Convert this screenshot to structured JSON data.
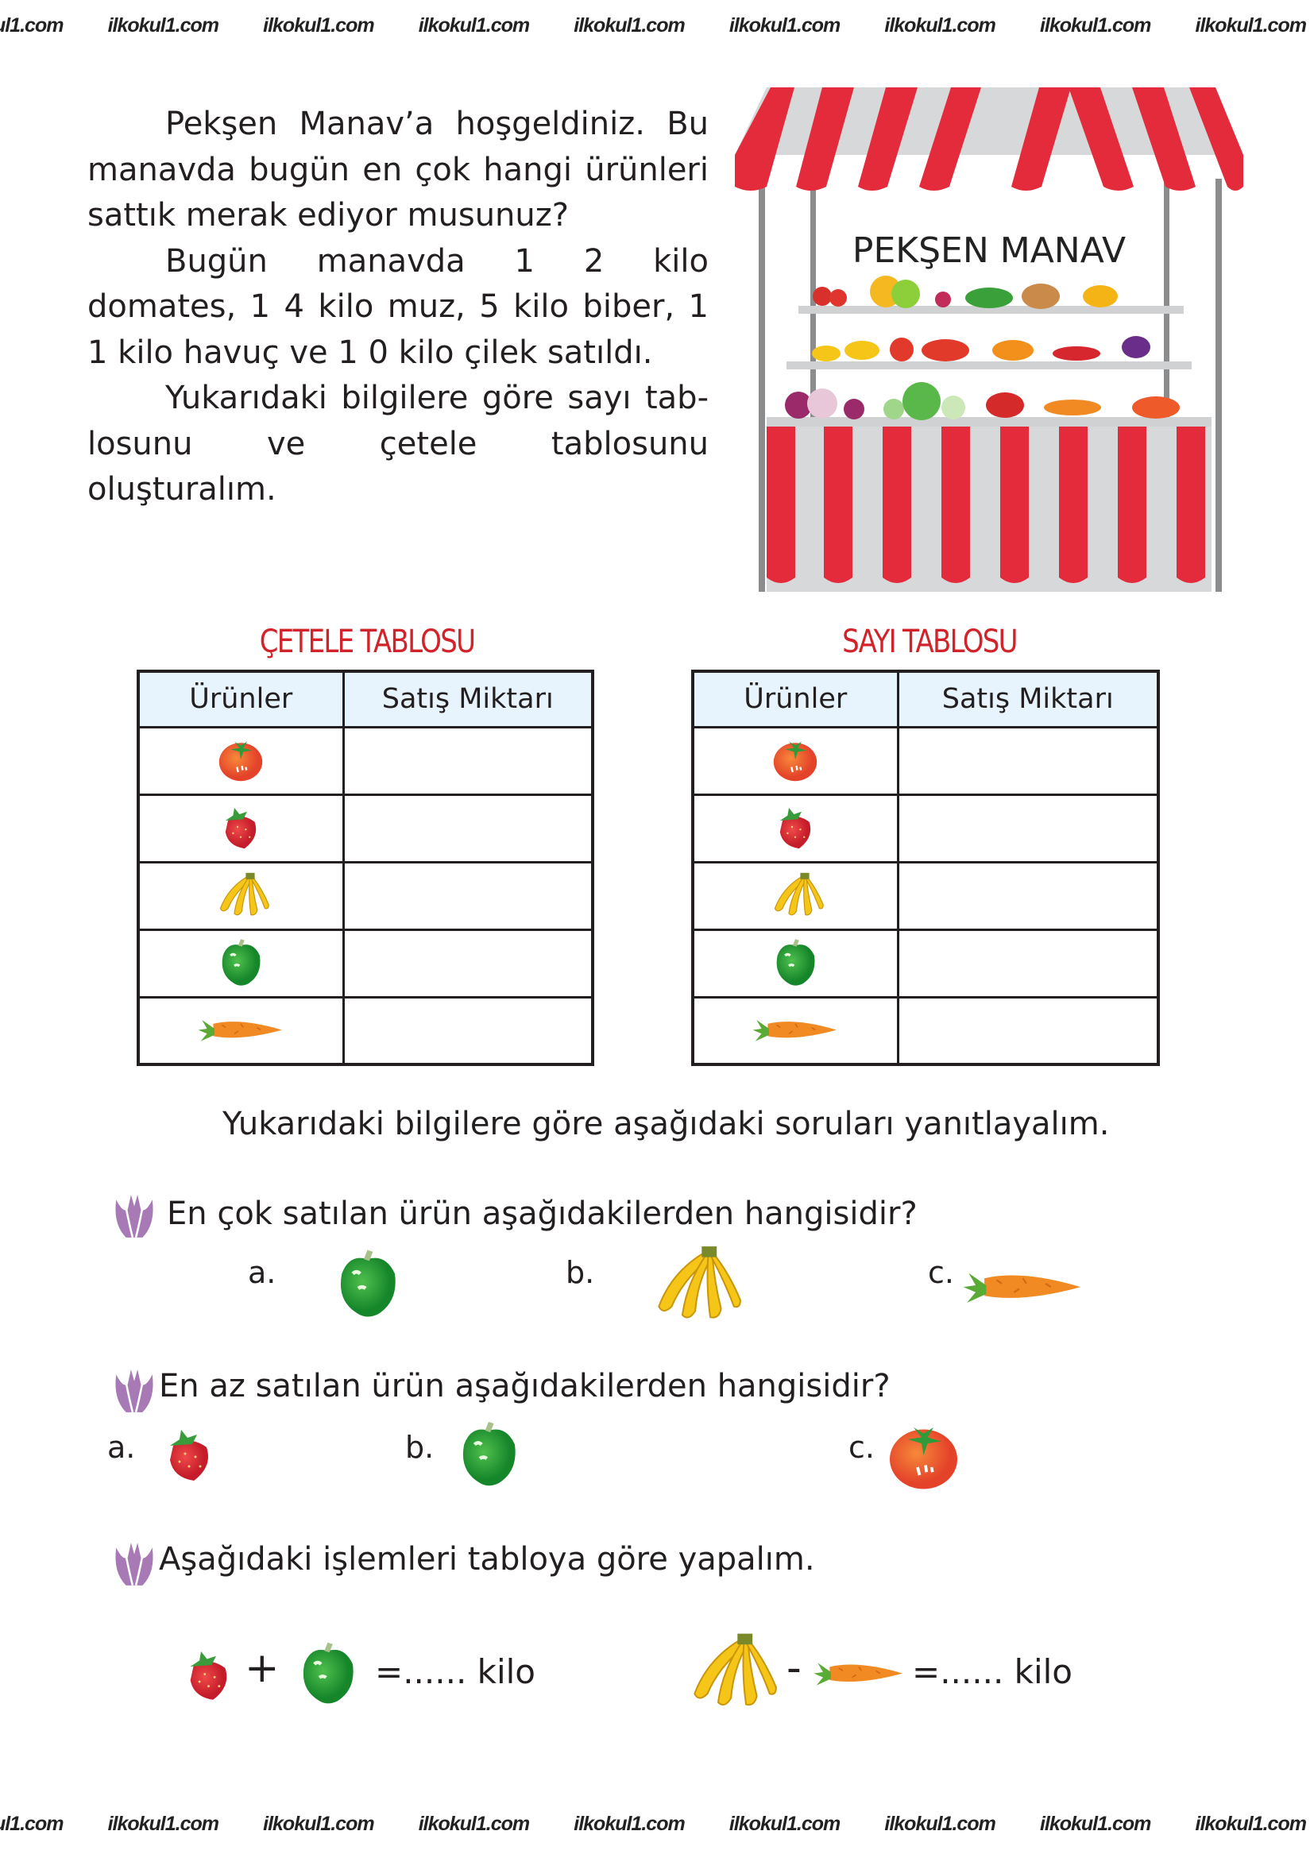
{
  "watermark": {
    "text": "ilkokul1.com",
    "count": 9
  },
  "intro": {
    "paragraphs": [
      "Pekşen Manav’a hoşgeldiniz. Bu manavda bugün en çok hangi ürünleri sattık merak ediyor musunuz?",
      "Bugün manavda 1 2 kilo domates, 1 4 kilo muz, 5 kilo biber, 1 1 kilo havuç ve 1 0 kilo çilek satıldı.",
      "Yukarıdaki bilgilere göre sayı tab- losunu ve çetele tablosunu oluşturalım."
    ]
  },
  "stall": {
    "sign": "PEKŞEN MANAV",
    "awning_colors": [
      "#e32b3c",
      "#d6d8da"
    ]
  },
  "tables": [
    {
      "title": "ÇETELE TABLOSU",
      "headers": [
        "Ürünler",
        "Satış Miktarı"
      ],
      "rows": [
        "tomato",
        "strawberry",
        "banana",
        "pepper",
        "carrot"
      ]
    },
    {
      "title": "SAYI TABLOSU",
      "headers": [
        "Ürünler",
        "Satış Miktarı"
      ],
      "rows": [
        "tomato",
        "strawberry",
        "banana",
        "pepper",
        "carrot"
      ]
    }
  ],
  "instruction": "Yukarıdaki bilgilere göre aşağıdaki soruları yanıtlayalım.",
  "questions": [
    {
      "text": "En çok satılan ürün aşağıdakilerden hangisidir?",
      "options": [
        {
          "label": "a.",
          "icon": "pepper"
        },
        {
          "label": "b.",
          "icon": "banana"
        },
        {
          "label": "c.",
          "icon": "carrot"
        }
      ]
    },
    {
      "text": "En az satılan ürün aşağıdakilerden hangisidir?",
      "options": [
        {
          "label": "a.",
          "icon": "strawberry"
        },
        {
          "label": "b.",
          "icon": "pepper"
        },
        {
          "label": "c.",
          "icon": "tomato"
        }
      ]
    },
    {
      "text": "Aşağıdaki işlemleri tabloya göre yapalım."
    }
  ],
  "operations": [
    {
      "left": "strawberry",
      "operator": "+",
      "right": "pepper",
      "result": "=...... kilo"
    },
    {
      "left": "banana",
      "operator": "-",
      "right": "carrot",
      "result": "=...... kilo"
    }
  ],
  "colors": {
    "title_red": "#d2232a",
    "header_blue": "#e7f4fd",
    "tulip": "#a779b5"
  }
}
